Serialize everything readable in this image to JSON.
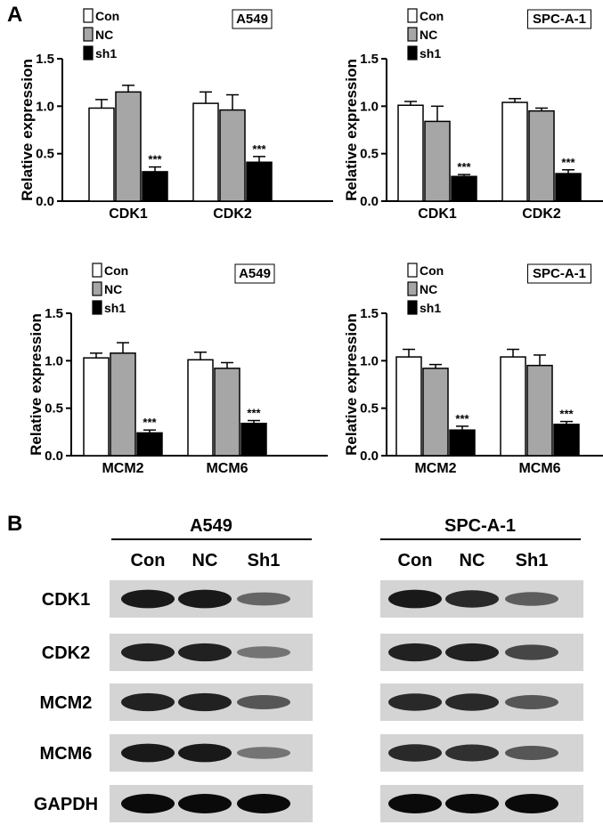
{
  "panel_a_letter": "A",
  "panel_b_letter": "B",
  "chart_data": [
    {
      "type": "bar",
      "title": "A549",
      "ylabel": "Relative expression",
      "xlabel": "",
      "categories": [
        "CDK1",
        "CDK2"
      ],
      "ylim": [
        0,
        1.5
      ],
      "yticks": [
        "0.0",
        "0.5",
        "1.0",
        "1.5"
      ],
      "series": [
        {
          "name": "Con",
          "values": [
            0.98,
            1.03
          ],
          "errors": [
            0.09,
            0.12
          ],
          "color": "#ffffff"
        },
        {
          "name": "NC",
          "values": [
            1.15,
            0.96
          ],
          "errors": [
            0.07,
            0.16
          ],
          "color": "#a6a6a6"
        },
        {
          "name": "sh1",
          "values": [
            0.31,
            0.41
          ],
          "errors": [
            0.05,
            0.06
          ],
          "color": "#000000"
        }
      ],
      "annotations": [
        "***",
        "***"
      ],
      "legend_position": "top-left"
    },
    {
      "type": "bar",
      "title": "SPC-A-1",
      "ylabel": "Relative expression",
      "xlabel": "",
      "categories": [
        "CDK1",
        "CDK2"
      ],
      "ylim": [
        0,
        1.5
      ],
      "yticks": [
        "0.0",
        "0.5",
        "1.0",
        "1.5"
      ],
      "series": [
        {
          "name": "Con",
          "values": [
            1.01,
            1.04
          ],
          "errors": [
            0.04,
            0.04
          ],
          "color": "#ffffff"
        },
        {
          "name": "NC",
          "values": [
            0.84,
            0.95
          ],
          "errors": [
            0.16,
            0.03
          ],
          "color": "#a6a6a6"
        },
        {
          "name": "sh1",
          "values": [
            0.26,
            0.29
          ],
          "errors": [
            0.02,
            0.04
          ],
          "color": "#000000"
        }
      ],
      "annotations": [
        "***",
        "***"
      ],
      "legend_position": "top-left"
    },
    {
      "type": "bar",
      "title": "A549",
      "ylabel": "Relative expression",
      "xlabel": "",
      "categories": [
        "MCM2",
        "MCM6"
      ],
      "ylim": [
        0,
        1.5
      ],
      "yticks": [
        "0.0",
        "0.5",
        "1.0",
        "1.5"
      ],
      "series": [
        {
          "name": "Con",
          "values": [
            1.03,
            1.01
          ],
          "errors": [
            0.05,
            0.08
          ],
          "color": "#ffffff"
        },
        {
          "name": "NC",
          "values": [
            1.08,
            0.92
          ],
          "errors": [
            0.11,
            0.06
          ],
          "color": "#a6a6a6"
        },
        {
          "name": "sh1",
          "values": [
            0.24,
            0.34
          ],
          "errors": [
            0.03,
            0.03
          ],
          "color": "#000000"
        }
      ],
      "annotations": [
        "***",
        "***"
      ],
      "legend_position": "top-left"
    },
    {
      "type": "bar",
      "title": "SPC-A-1",
      "ylabel": "Relative expression",
      "xlabel": "",
      "categories": [
        "MCM2",
        "MCM6"
      ],
      "ylim": [
        0,
        1.5
      ],
      "yticks": [
        "0.0",
        "0.5",
        "1.0",
        "1.5"
      ],
      "series": [
        {
          "name": "Con",
          "values": [
            1.04,
            1.04
          ],
          "errors": [
            0.08,
            0.08
          ],
          "color": "#ffffff"
        },
        {
          "name": "NC",
          "values": [
            0.92,
            0.95
          ],
          "errors": [
            0.04,
            0.11
          ],
          "color": "#a6a6a6"
        },
        {
          "name": "sh1",
          "values": [
            0.27,
            0.33
          ],
          "errors": [
            0.04,
            0.03
          ],
          "color": "#000000"
        }
      ],
      "annotations": [
        "***",
        "***"
      ],
      "legend_position": "top-left"
    }
  ],
  "western_blot": {
    "proteins": [
      "CDK1",
      "CDK2",
      "MCM2",
      "MCM6",
      "GAPDH"
    ],
    "groups": [
      {
        "name": "A549",
        "lanes": [
          "Con",
          "NC",
          "Sh1"
        ],
        "band_intensity": [
          [
            0.9,
            0.9,
            0.4
          ],
          [
            0.85,
            0.85,
            0.3
          ],
          [
            0.85,
            0.85,
            0.5
          ],
          [
            0.9,
            0.9,
            0.3
          ],
          [
            1.0,
            1.0,
            1.0
          ]
        ]
      },
      {
        "name": "SPC-A-1",
        "lanes": [
          "Con",
          "NC",
          "Sh1"
        ],
        "band_intensity": [
          [
            0.9,
            0.8,
            0.45
          ],
          [
            0.85,
            0.85,
            0.6
          ],
          [
            0.8,
            0.8,
            0.5
          ],
          [
            0.8,
            0.75,
            0.5
          ],
          [
            1.0,
            1.0,
            1.0
          ]
        ]
      }
    ],
    "background_color": "#d4d4d4",
    "band_color": "#0a0a0a"
  }
}
